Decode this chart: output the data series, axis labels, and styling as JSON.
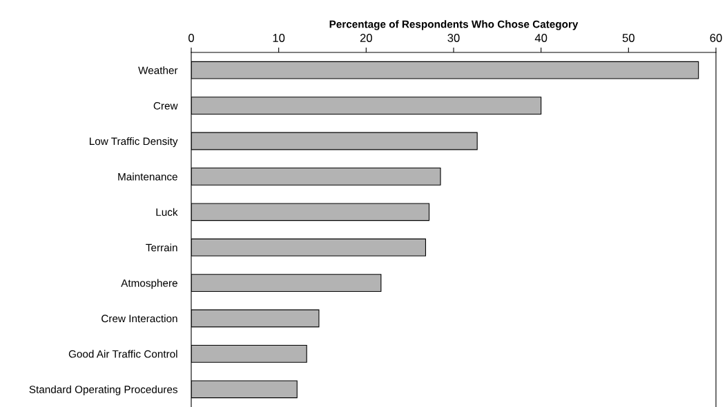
{
  "chart_data": {
    "type": "bar",
    "orientation": "horizontal",
    "xlabel": "Percentage of Respondents Who Chose Category",
    "categories": [
      "Weather",
      "Crew",
      "Low Traffic Density",
      "Maintenance",
      "Luck",
      "Terrain",
      "Atmosphere",
      "Crew Interaction",
      "Good Air Traffic Control",
      "Standard Operating Procedures"
    ],
    "values": [
      58,
      40,
      32.7,
      28.5,
      27.2,
      26.8,
      21.7,
      14.6,
      13.2,
      12.1
    ],
    "color": "#b3b3b3",
    "xlim": [
      0,
      60
    ],
    "xticks": [
      0,
      10,
      20,
      30,
      40,
      50,
      60
    ],
    "grid": false
  }
}
